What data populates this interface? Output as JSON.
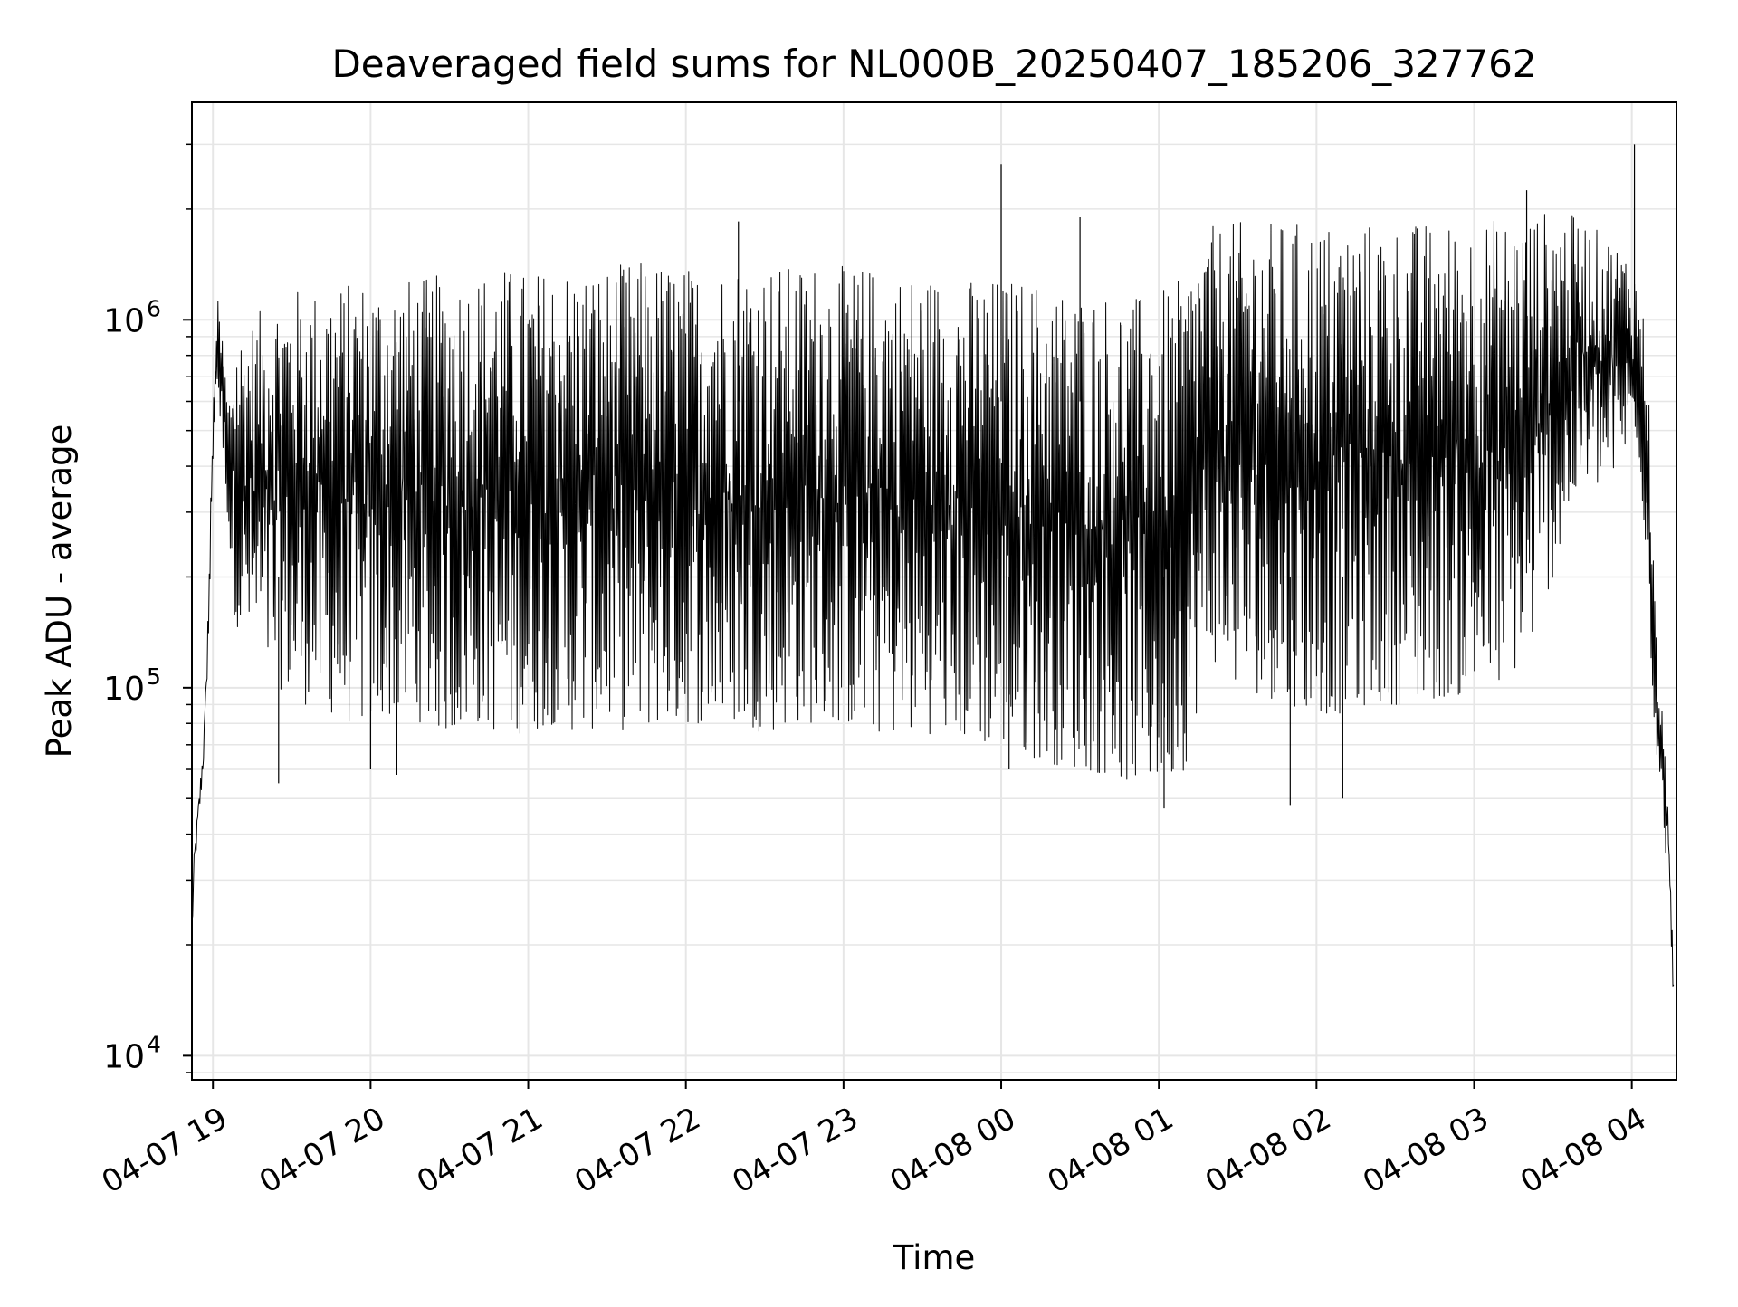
{
  "chart_data": {
    "type": "line",
    "title": "Deaveraged field sums for NL000B_20250407_185206_327762",
    "xlabel": "Time",
    "ylabel": "Peak ADU - average",
    "yscale": "log",
    "ylim": [
      8600,
      3900000
    ],
    "xlim": [
      "2025-04-07 18:52",
      "2025-04-08 04:17"
    ],
    "grid": true,
    "legend": "none",
    "line_color": "#000000",
    "grid_color": "#e6e6e6",
    "x_ticks": [
      "2025-04-07 19:00",
      "2025-04-07 20:00",
      "2025-04-07 21:00",
      "2025-04-07 22:00",
      "2025-04-07 23:00",
      "2025-04-08 00:00",
      "2025-04-08 01:00",
      "2025-04-08 02:00",
      "2025-04-08 03:00",
      "2025-04-08 04:00"
    ],
    "x_tick_labels": [
      "04-07 19",
      "04-07 20",
      "04-07 21",
      "04-07 22",
      "04-07 23",
      "04-08 00",
      "04-08 01",
      "04-08 02",
      "04-08 03",
      "04-08 04"
    ],
    "y_ticks": [
      10000,
      100000,
      1000000
    ],
    "y_tick_labels": [
      {
        "base": "10",
        "exp": "4"
      },
      {
        "base": "10",
        "exp": "5"
      },
      {
        "base": "10",
        "exp": "6"
      }
    ],
    "series": [
      {
        "x": [
          "2025-04-07 18:52",
          "2025-04-07 18:53",
          "2025-04-07 18:54",
          "2025-04-07 18:55",
          "2025-04-07 18:56",
          "2025-04-07 18:57",
          "2025-04-07 18:58",
          "2025-04-07 18:59",
          "2025-04-07 19:00",
          "2025-04-07 19:01",
          "2025-04-07 19:02",
          "2025-04-07 19:03",
          "2025-04-07 19:04",
          "2025-04-07 19:05",
          "2025-04-07 19:06",
          "2025-04-07 19:07",
          "2025-04-07 19:08",
          "2025-04-07 19:09",
          "2025-04-07 19:10",
          "2025-04-07 19:15",
          "2025-04-07 19:20",
          "2025-04-07 19:25",
          "2025-04-07 19:30",
          "2025-04-07 19:35",
          "2025-04-07 19:40",
          "2025-04-07 19:45",
          "2025-04-07 19:50",
          "2025-04-07 19:55",
          "2025-04-07 20:00",
          "2025-04-07 20:10",
          "2025-04-07 20:20",
          "2025-04-07 20:30",
          "2025-04-07 20:40",
          "2025-04-07 20:50",
          "2025-04-07 21:00",
          "2025-04-07 21:10",
          "2025-04-07 21:20",
          "2025-04-07 21:30",
          "2025-04-07 21:40",
          "2025-04-07 21:50",
          "2025-04-07 22:00",
          "2025-04-07 22:10",
          "2025-04-07 22:20",
          "2025-04-07 22:30",
          "2025-04-07 22:40",
          "2025-04-07 22:50",
          "2025-04-07 23:00",
          "2025-04-07 23:10",
          "2025-04-07 23:20",
          "2025-04-07 23:30",
          "2025-04-07 23:40",
          "2025-04-07 23:50",
          "2025-04-08 00:00",
          "2025-04-08 00:10",
          "2025-04-08 00:20",
          "2025-04-08 00:30",
          "2025-04-08 00:40",
          "2025-04-08 00:50",
          "2025-04-08 01:00",
          "2025-04-08 01:10",
          "2025-04-08 01:15",
          "2025-04-08 01:20",
          "2025-04-08 01:30",
          "2025-04-08 01:40",
          "2025-04-08 01:50",
          "2025-04-08 02:00",
          "2025-04-08 02:10",
          "2025-04-08 02:20",
          "2025-04-08 02:30",
          "2025-04-08 02:40",
          "2025-04-08 02:50",
          "2025-04-08 03:00",
          "2025-04-08 03:10",
          "2025-04-08 03:20",
          "2025-04-08 03:30",
          "2025-04-08 03:40",
          "2025-04-08 03:50",
          "2025-04-08 04:00",
          "2025-04-08 04:03",
          "2025-04-08 04:06",
          "2025-04-08 04:08",
          "2025-04-08 04:10",
          "2025-04-08 04:12",
          "2025-04-08 04:14",
          "2025-04-08 04:16"
        ],
        "low": [
          20000,
          30000,
          38000,
          45000,
          55000,
          70000,
          110000,
          200000,
          400000,
          650000,
          600000,
          500000,
          400000,
          350000,
          250000,
          200000,
          160000,
          150000,
          140000,
          130000,
          110000,
          100000,
          95000,
          90000,
          90000,
          85000,
          80000,
          80000,
          80000,
          85000,
          80000,
          75000,
          80000,
          75000,
          75000,
          80000,
          75000,
          80000,
          75000,
          80000,
          80000,
          80000,
          80000,
          75000,
          80000,
          80000,
          80000,
          75000,
          75000,
          75000,
          75000,
          70000,
          70000,
          65000,
          62000,
          60000,
          58000,
          55000,
          55000,
          60000,
          90000,
          120000,
          100000,
          95000,
          90000,
          85000,
          85000,
          90000,
          90000,
          90000,
          95000,
          95000,
          100000,
          120000,
          200000,
          350000,
          350000,
          450000,
          400000,
          200000,
          90000,
          60000,
          40000,
          30000,
          13000
        ],
        "high": [
          25000,
          38000,
          45000,
          55000,
          70000,
          90000,
          150000,
          300000,
          550000,
          900000,
          1150000,
          950000,
          900000,
          700000,
          600000,
          800000,
          900000,
          950000,
          950000,
          1000000,
          1100000,
          1200000,
          1200000,
          1250000,
          1200000,
          1300000,
          1250000,
          1300000,
          1300000,
          1300000,
          1300000,
          1350000,
          1350000,
          1400000,
          1350000,
          1400000,
          1400000,
          1400000,
          1450000,
          1450000,
          1400000,
          1400000,
          1450000,
          1450000,
          1400000,
          1450000,
          1400000,
          1400000,
          1350000,
          1350000,
          1300000,
          1300000,
          1300000,
          1300000,
          1250000,
          1200000,
          1200000,
          1150000,
          1200000,
          1300000,
          1650000,
          1800000,
          1850000,
          1850000,
          1850000,
          1850000,
          1850000,
          1850000,
          1850000,
          1850000,
          1850000,
          1900000,
          1900000,
          1950000,
          2000000,
          1900000,
          1700000,
          1500000,
          1200000,
          900000,
          250000,
          110000,
          80000,
          50000,
          15000
        ]
      }
    ],
    "spikes": [
      {
        "x": "2025-04-07 19:25",
        "y": 55000
      },
      {
        "x": "2025-04-07 20:00",
        "y": 60000
      },
      {
        "x": "2025-04-07 20:10",
        "y": 58000
      },
      {
        "x": "2025-04-07 22:20",
        "y": 1850000
      },
      {
        "x": "2025-04-08 00:00",
        "y": 2650000
      },
      {
        "x": "2025-04-08 00:03",
        "y": 60000
      },
      {
        "x": "2025-04-08 00:30",
        "y": 1900000
      },
      {
        "x": "2025-04-08 01:02",
        "y": 47000
      },
      {
        "x": "2025-04-08 01:50",
        "y": 48000
      },
      {
        "x": "2025-04-08 02:10",
        "y": 50000
      },
      {
        "x": "2025-04-08 03:20",
        "y": 2250000
      },
      {
        "x": "2025-04-08 04:01",
        "y": 3000000
      }
    ]
  }
}
